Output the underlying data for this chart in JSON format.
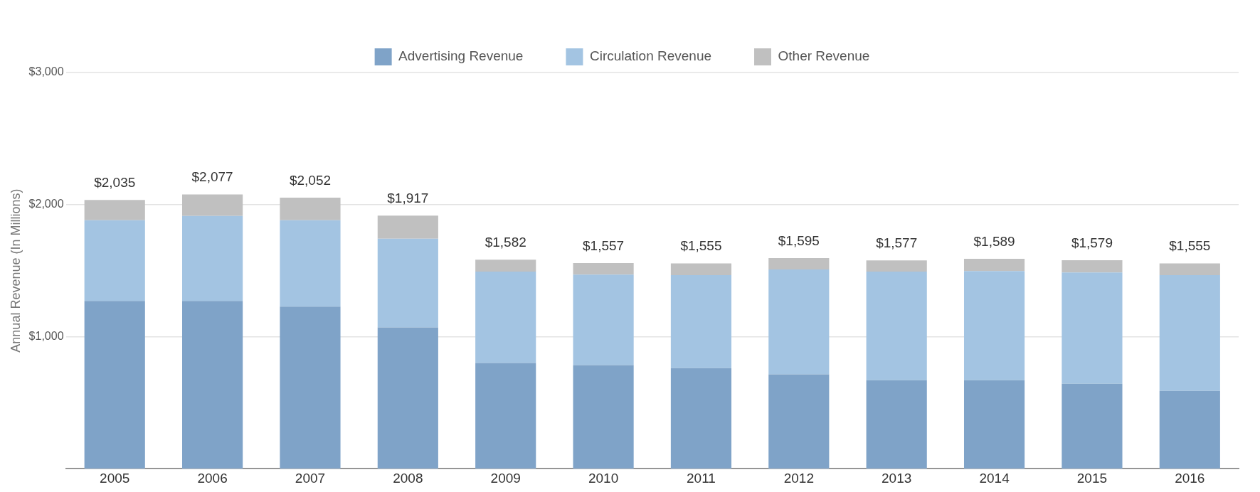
{
  "chart_data": {
    "type": "bar",
    "stacked": true,
    "ylabel": "Annual Revenue (In Millions)",
    "categories": [
      "2005",
      "2006",
      "2007",
      "2008",
      "2009",
      "2010",
      "2011",
      "2012",
      "2013",
      "2014",
      "2015",
      "2016"
    ],
    "series": [
      {
        "name": "Advertising Revenue",
        "color": "#7fa3c8",
        "values": [
          1270,
          1270,
          1227,
          1070,
          800,
          784,
          762,
          714,
          670,
          670,
          643,
          589
        ]
      },
      {
        "name": "Circulation Revenue",
        "color": "#a3c4e2",
        "values": [
          611,
          644,
          654,
          671,
          692,
          686,
          703,
          794,
          822,
          827,
          843,
          876
        ]
      },
      {
        "name": "Other Revenue",
        "color": "#c0c0c0",
        "values": [
          154,
          163,
          171,
          176,
          90,
          87,
          90,
          87,
          85,
          92,
          93,
          90
        ]
      }
    ],
    "totals": [
      "$2,035",
      "$2,077",
      "$2,052",
      "$1,917",
      "$1,582",
      "$1,557",
      "$1,555",
      "$1,595",
      "$1,577",
      "$1,589",
      "$1,579",
      "$1,555"
    ],
    "ylim": [
      0,
      3000
    ],
    "yticks": [
      {
        "value": 0,
        "label": null
      },
      {
        "value": 1000,
        "label": "$1,000"
      },
      {
        "value": 2000,
        "label": "$2,000"
      },
      {
        "value": 3000,
        "label": "$3,000"
      }
    ],
    "grid": "y",
    "legend": "top"
  }
}
